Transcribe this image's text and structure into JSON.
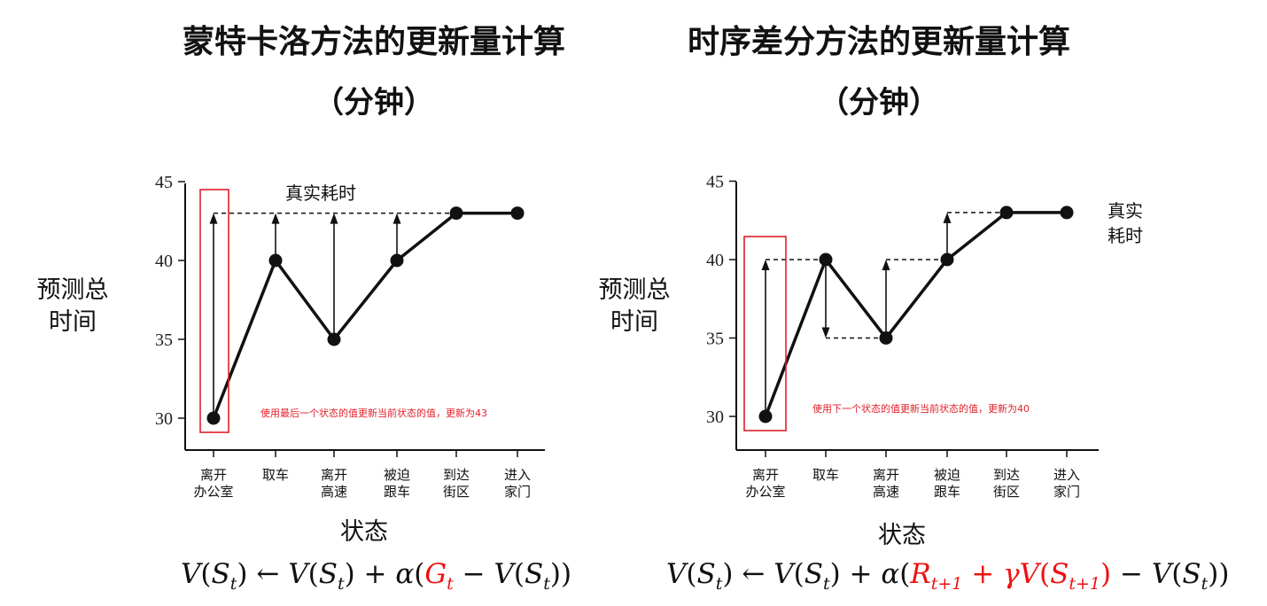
{
  "left": {
    "title": "蒙特卡洛方法的更新量计算",
    "subtitle": "（分钟）",
    "ylabel_line1": "预测总",
    "ylabel_line2": "时间",
    "xlabel": "状态",
    "annotation": "真实耗时",
    "note": "使用最后一个状态的值更新当前状态的值，更新为43",
    "yticks": [
      "30",
      "35",
      "40",
      "45"
    ],
    "categories": [
      [
        "离开",
        "办公室"
      ],
      [
        "取车",
        ""
      ],
      [
        "离开",
        "高速"
      ],
      [
        "被迫",
        "跟车"
      ],
      [
        "到达",
        "街区"
      ],
      [
        "进入",
        "家门"
      ]
    ],
    "values": [
      30,
      40,
      35,
      40,
      43,
      43
    ],
    "formula": {
      "lhs": "V",
      "arrow": "←",
      "alpha": "α",
      "target": "G",
      "target_sub": "t",
      "state": "S",
      "state_sub": "t"
    }
  },
  "right": {
    "title": "时序差分方法的更新量计算",
    "subtitle": "（分钟）",
    "ylabel_line1": "预测总",
    "ylabel_line2": "时间",
    "xlabel": "状态",
    "annotation_line1": "真实",
    "annotation_line2": "耗时",
    "note": "使用下一个状态的值更新当前状态的值，更新为40",
    "yticks": [
      "30",
      "35",
      "40",
      "45"
    ],
    "categories": [
      [
        "离开",
        "办公室"
      ],
      [
        "取车",
        ""
      ],
      [
        "离开",
        "高速"
      ],
      [
        "被迫",
        "跟车"
      ],
      [
        "到达",
        "街区"
      ],
      [
        "进入",
        "家门"
      ]
    ],
    "values": [
      30,
      40,
      35,
      40,
      43,
      43
    ],
    "formula": {
      "lhs": "V",
      "arrow": "←",
      "alpha": "α",
      "reward": "R",
      "reward_sub": "t+1",
      "gamma": "γ",
      "state": "S",
      "state_sub": "t",
      "next_sub": "t+1"
    }
  },
  "chart_data": [
    {
      "type": "line",
      "categories": [
        "离开办公室",
        "取车",
        "离开高速",
        "被迫跟车",
        "到达街区",
        "进入家门"
      ],
      "values": [
        30,
        40,
        35,
        40,
        43,
        43
      ],
      "title": "蒙特卡洛方法的更新量计算",
      "ylabel": "预测总时间",
      "xlabel": "状态",
      "ylim": [
        30,
        45
      ],
      "reference_line": 43
    },
    {
      "type": "line",
      "categories": [
        "离开办公室",
        "取车",
        "离开高速",
        "被迫跟车",
        "到达街区",
        "进入家门"
      ],
      "values": [
        30,
        40,
        35,
        40,
        43,
        43
      ],
      "title": "时序差分方法的更新量计算",
      "ylabel": "预测总时间",
      "xlabel": "状态",
      "ylim": [
        30,
        45
      ]
    }
  ],
  "colors": {
    "highlight": "#e0202a",
    "line": "#111111"
  }
}
